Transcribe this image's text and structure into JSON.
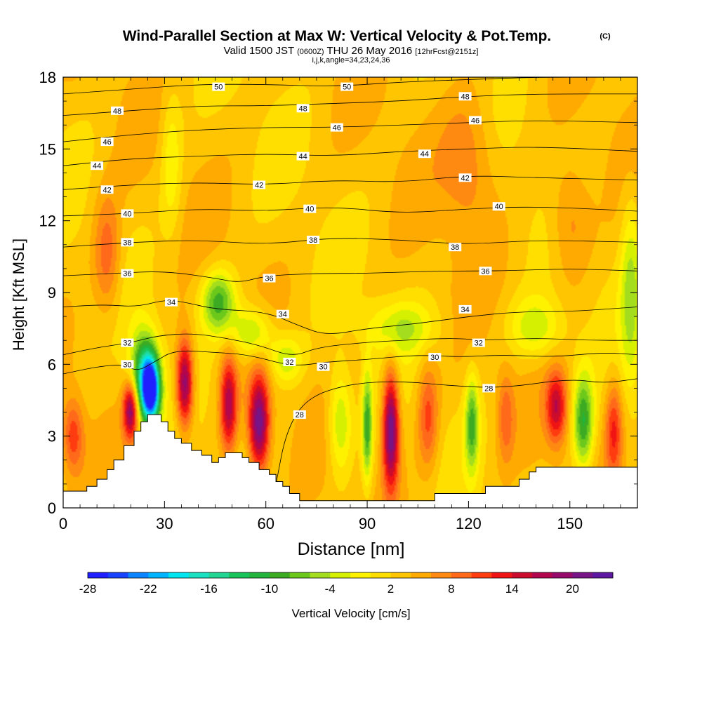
{
  "title": "Wind-Parallel Section at Max W: Vertical Velocity & Pot.Temp.",
  "copyright": "(C)",
  "subtitle": {
    "valid_prefix": "Valid 1500 JST",
    "utc": "(0600Z)",
    "date": "THU 26 May 2016",
    "forecast": "[12hrFcst@2151z]"
  },
  "indices": "i,j,k,angle=34,23,24,36",
  "chart_data": {
    "type": "heatmap",
    "title": "Wind-Parallel Section at Max W: Vertical Velocity & Pot.Temp.",
    "xlabel": "Distance [nm]",
    "ylabel": "Height [Kft MSL]",
    "xlim": [
      0,
      170
    ],
    "ylim": [
      0,
      18
    ],
    "xticks": [
      0,
      30,
      60,
      90,
      120,
      150
    ],
    "yticks": [
      0,
      3,
      6,
      9,
      12,
      15,
      18
    ],
    "grid": false,
    "fill_field": "Vertical Velocity",
    "fill_units": "cm/s",
    "contour_field": "Potential Temperature",
    "colorbar": {
      "label": "Vertical Velocity [cm/s]",
      "tick_labels": [
        "-28",
        "-22",
        "-16",
        "-10",
        "-4",
        "2",
        "8",
        "14",
        "20"
      ],
      "colors": [
        "#1f1fff",
        "#1844ff",
        "#0a84ff",
        "#00b4ff",
        "#00e6ee",
        "#18e0c0",
        "#22d592",
        "#18c45a",
        "#22b43c",
        "#3cab23",
        "#6cc81a",
        "#a3dd1e",
        "#d5f000",
        "#fff200",
        "#ffdf00",
        "#ffc500",
        "#ffaa00",
        "#ff8a12",
        "#ff6a1a",
        "#ff3c10",
        "#f01414",
        "#cc0c2c",
        "#b2064e",
        "#950a6a",
        "#771486",
        "#5c18a0"
      ]
    },
    "terrain": [
      [
        0,
        0.7
      ],
      [
        7,
        0.7
      ],
      [
        7,
        0.9
      ],
      [
        10,
        0.9
      ],
      [
        10,
        1.2
      ],
      [
        13,
        1.2
      ],
      [
        13,
        1.6
      ],
      [
        15,
        1.6
      ],
      [
        15,
        2.0
      ],
      [
        18,
        2.0
      ],
      [
        18,
        2.6
      ],
      [
        21,
        2.6
      ],
      [
        21,
        3.2
      ],
      [
        23,
        3.2
      ],
      [
        23,
        3.6
      ],
      [
        25,
        3.6
      ],
      [
        25,
        3.9
      ],
      [
        29,
        3.9
      ],
      [
        29,
        3.6
      ],
      [
        31,
        3.6
      ],
      [
        31,
        3.2
      ],
      [
        33,
        3.2
      ],
      [
        33,
        2.9
      ],
      [
        35,
        2.9
      ],
      [
        35,
        2.7
      ],
      [
        38,
        2.7
      ],
      [
        38,
        2.4
      ],
      [
        41,
        2.4
      ],
      [
        41,
        2.2
      ],
      [
        44,
        2.2
      ],
      [
        44,
        1.9
      ],
      [
        46,
        1.9
      ],
      [
        46,
        2.1
      ],
      [
        48,
        2.1
      ],
      [
        48,
        2.3
      ],
      [
        53,
        2.3
      ],
      [
        53,
        2.1
      ],
      [
        55,
        2.1
      ],
      [
        55,
        1.9
      ],
      [
        58,
        1.9
      ],
      [
        58,
        1.6
      ],
      [
        61,
        1.6
      ],
      [
        61,
        1.4
      ],
      [
        63,
        1.4
      ],
      [
        63,
        1.1
      ],
      [
        65,
        1.1
      ],
      [
        65,
        0.9
      ],
      [
        67,
        0.9
      ],
      [
        67,
        0.6
      ],
      [
        70,
        0.6
      ],
      [
        70,
        0.3
      ],
      [
        110,
        0.3
      ],
      [
        110,
        0.6
      ],
      [
        125,
        0.6
      ],
      [
        125,
        0.9
      ],
      [
        135,
        0.9
      ],
      [
        135,
        1.2
      ],
      [
        138,
        1.2
      ],
      [
        138,
        1.5
      ],
      [
        140,
        1.5
      ],
      [
        140,
        1.7
      ],
      [
        170,
        1.7
      ],
      [
        170,
        0
      ],
      [
        0,
        0
      ]
    ],
    "vv_features": [
      {
        "x": 26,
        "y": 4.9,
        "w": -27,
        "rx": 2.6,
        "ry": 1.3
      },
      {
        "x": 24,
        "y": 5.5,
        "w": -18,
        "rx": 4,
        "ry": 1.8
      },
      {
        "x": 20,
        "y": 4.1,
        "w": 18,
        "rx": 2.2,
        "ry": 1.2
      },
      {
        "x": 36,
        "y": 5.2,
        "w": 18,
        "rx": 2.5,
        "ry": 1.8
      },
      {
        "x": 49,
        "y": 4.3,
        "w": 14,
        "rx": 2.5,
        "ry": 2.0
      },
      {
        "x": 58,
        "y": 3.5,
        "w": 19,
        "rx": 3,
        "ry": 2.0
      },
      {
        "x": 97,
        "y": 3.3,
        "w": 20,
        "rx": 2.4,
        "ry": 2.4
      },
      {
        "x": 90,
        "y": 3.4,
        "w": -12,
        "rx": 1.5,
        "ry": 2.3
      },
      {
        "x": 82,
        "y": 3.6,
        "w": -8,
        "rx": 3.5,
        "ry": 2.2
      },
      {
        "x": 108,
        "y": 3.8,
        "w": 8,
        "rx": 3,
        "ry": 2.2
      },
      {
        "x": 121,
        "y": 3.5,
        "w": -11,
        "rx": 2,
        "ry": 2.0
      },
      {
        "x": 131,
        "y": 3.8,
        "w": 6,
        "rx": 2.5,
        "ry": 1.9
      },
      {
        "x": 154,
        "y": 3.6,
        "w": -13,
        "rx": 3,
        "ry": 2.0
      },
      {
        "x": 146,
        "y": 4.2,
        "w": 12,
        "rx": 3,
        "ry": 1.5
      },
      {
        "x": 163,
        "y": 3.3,
        "w": 9,
        "rx": 2.5,
        "ry": 2.0
      },
      {
        "x": 46,
        "y": 8.6,
        "w": -12,
        "rx": 5,
        "ry": 1.3
      },
      {
        "x": 56,
        "y": 7.3,
        "w": -9,
        "rx": 6,
        "ry": 1.1
      },
      {
        "x": 66,
        "y": 6.2,
        "w": -7,
        "rx": 5,
        "ry": 1.0
      },
      {
        "x": 100,
        "y": 7.5,
        "w": -6,
        "rx": 10,
        "ry": 1.1
      },
      {
        "x": 140,
        "y": 7.5,
        "w": -7,
        "rx": 8,
        "ry": 1.3
      },
      {
        "x": 168,
        "y": 9,
        "w": -7,
        "rx": 3,
        "ry": 4.0
      },
      {
        "x": 13,
        "y": 10.5,
        "w": 7,
        "rx": 4,
        "ry": 2.5
      },
      {
        "x": 3,
        "y": 3.0,
        "w": 8,
        "rx": 3,
        "ry": 1.5
      },
      {
        "x": 120,
        "y": 14.5,
        "w": 5,
        "rx": 8,
        "ry": 3.0
      },
      {
        "x": 150,
        "y": 12.0,
        "w": 5,
        "rx": 6,
        "ry": 2.5
      },
      {
        "x": 32,
        "y": 14.5,
        "w": -5,
        "rx": 3,
        "ry": 3.0
      }
    ],
    "contours": [
      {
        "value": 28,
        "points": [
          [
            63,
            1.0
          ],
          [
            66,
            3.2
          ],
          [
            72,
            4.6
          ],
          [
            85,
            5.2
          ],
          [
            100,
            5.3
          ],
          [
            115,
            5.1
          ],
          [
            130,
            5.0
          ],
          [
            150,
            5.4
          ],
          [
            160,
            5.2
          ],
          [
            170,
            5.4
          ]
        ]
      },
      {
        "value": 30,
        "points": [
          [
            0,
            5.6
          ],
          [
            10,
            5.9
          ],
          [
            18,
            6.0
          ],
          [
            22,
            5.7
          ],
          [
            27,
            6.1
          ],
          [
            33,
            6.6
          ],
          [
            45,
            6.5
          ],
          [
            55,
            6.4
          ],
          [
            68,
            5.9
          ],
          [
            78,
            6.1
          ],
          [
            90,
            6.2
          ],
          [
            105,
            6.4
          ],
          [
            118,
            6.3
          ],
          [
            130,
            6.4
          ],
          [
            145,
            6.3
          ],
          [
            160,
            6.5
          ],
          [
            170,
            6.4
          ]
        ]
      },
      {
        "value": 32,
        "points": [
          [
            0,
            6.4
          ],
          [
            10,
            6.7
          ],
          [
            20,
            6.9
          ],
          [
            28,
            7.2
          ],
          [
            38,
            7.3
          ],
          [
            48,
            7.1
          ],
          [
            58,
            6.8
          ],
          [
            68,
            6.3
          ],
          [
            75,
            6.7
          ],
          [
            88,
            6.9
          ],
          [
            100,
            7.0
          ],
          [
            115,
            7.1
          ],
          [
            125,
            7.0
          ],
          [
            140,
            7.1
          ],
          [
            155,
            7.0
          ],
          [
            170,
            7.0
          ]
        ]
      },
      {
        "value": 34,
        "points": [
          [
            0,
            8.4
          ],
          [
            12,
            8.5
          ],
          [
            22,
            8.4
          ],
          [
            30,
            8.7
          ],
          [
            36,
            8.6
          ],
          [
            45,
            8.3
          ],
          [
            60,
            8.2
          ],
          [
            70,
            7.6
          ],
          [
            78,
            7.2
          ],
          [
            90,
            7.5
          ],
          [
            105,
            7.7
          ],
          [
            120,
            8.0
          ],
          [
            135,
            8.2
          ],
          [
            150,
            8.2
          ],
          [
            170,
            8.4
          ]
        ]
      },
      {
        "value": 36,
        "points": [
          [
            0,
            9.7
          ],
          [
            15,
            9.8
          ],
          [
            30,
            9.9
          ],
          [
            45,
            9.6
          ],
          [
            52,
            9.4
          ],
          [
            60,
            9.7
          ],
          [
            75,
            9.8
          ],
          [
            90,
            9.8
          ],
          [
            110,
            9.9
          ],
          [
            130,
            9.9
          ],
          [
            150,
            10.0
          ],
          [
            170,
            9.9
          ]
        ]
      },
      {
        "value": 38,
        "points": [
          [
            0,
            10.9
          ],
          [
            20,
            11.1
          ],
          [
            40,
            11.2
          ],
          [
            60,
            11.0
          ],
          [
            80,
            11.3
          ],
          [
            100,
            11.2
          ],
          [
            120,
            11.0
          ],
          [
            140,
            11.2
          ],
          [
            170,
            11.1
          ]
        ]
      },
      {
        "value": 40,
        "points": [
          [
            0,
            12.2
          ],
          [
            20,
            12.3
          ],
          [
            40,
            12.5
          ],
          [
            60,
            12.4
          ],
          [
            80,
            12.6
          ],
          [
            100,
            12.3
          ],
          [
            120,
            12.5
          ],
          [
            140,
            12.6
          ],
          [
            170,
            12.4
          ]
        ]
      },
      {
        "value": 42,
        "points": [
          [
            0,
            13.3
          ],
          [
            20,
            13.5
          ],
          [
            40,
            13.6
          ],
          [
            60,
            13.5
          ],
          [
            80,
            13.7
          ],
          [
            100,
            13.6
          ],
          [
            120,
            13.9
          ],
          [
            140,
            13.8
          ],
          [
            170,
            13.7
          ]
        ]
      },
      {
        "value": 44,
        "points": [
          [
            0,
            14.3
          ],
          [
            20,
            14.6
          ],
          [
            40,
            14.7
          ],
          [
            60,
            14.8
          ],
          [
            80,
            14.7
          ],
          [
            100,
            14.9
          ],
          [
            120,
            15.0
          ],
          [
            140,
            15.1
          ],
          [
            170,
            14.9
          ]
        ]
      },
      {
        "value": 46,
        "points": [
          [
            0,
            15.3
          ],
          [
            20,
            15.6
          ],
          [
            40,
            15.8
          ],
          [
            60,
            15.9
          ],
          [
            80,
            15.9
          ],
          [
            100,
            16.0
          ],
          [
            120,
            16.1
          ],
          [
            140,
            16.2
          ],
          [
            170,
            16.1
          ]
        ]
      },
      {
        "value": 48,
        "points": [
          [
            0,
            16.4
          ],
          [
            20,
            16.6
          ],
          [
            40,
            16.8
          ],
          [
            60,
            16.8
          ],
          [
            80,
            16.9
          ],
          [
            100,
            17.0
          ],
          [
            120,
            17.2
          ],
          [
            140,
            17.3
          ],
          [
            170,
            17.3
          ]
        ]
      },
      {
        "value": 50,
        "points": [
          [
            0,
            17.3
          ],
          [
            20,
            17.5
          ],
          [
            40,
            17.7
          ],
          [
            60,
            17.7
          ],
          [
            80,
            17.6
          ],
          [
            100,
            17.8
          ],
          [
            120,
            17.9
          ],
          [
            140,
            18.0
          ],
          [
            170,
            18.0
          ]
        ]
      }
    ],
    "contour_labels": [
      {
        "text": "50",
        "x": 46,
        "y": 17.6
      },
      {
        "text": "50",
        "x": 84,
        "y": 17.6
      },
      {
        "text": "48",
        "x": 16,
        "y": 16.6
      },
      {
        "text": "48",
        "x": 71,
        "y": 16.7
      },
      {
        "text": "48",
        "x": 119,
        "y": 17.2
      },
      {
        "text": "46",
        "x": 81,
        "y": 15.9
      },
      {
        "text": "46",
        "x": 122,
        "y": 16.2
      },
      {
        "text": "46",
        "x": 13,
        "y": 15.3
      },
      {
        "text": "44",
        "x": 71,
        "y": 14.7
      },
      {
        "text": "44",
        "x": 107,
        "y": 14.8
      },
      {
        "text": "44",
        "x": 10,
        "y": 14.3
      },
      {
        "text": "42",
        "x": 58,
        "y": 13.5
      },
      {
        "text": "42",
        "x": 119,
        "y": 13.8
      },
      {
        "text": "42",
        "x": 13,
        "y": 13.3
      },
      {
        "text": "40",
        "x": 19,
        "y": 12.3
      },
      {
        "text": "40",
        "x": 73,
        "y": 12.5
      },
      {
        "text": "40",
        "x": 129,
        "y": 12.6
      },
      {
        "text": "38",
        "x": 19,
        "y": 11.1
      },
      {
        "text": "38",
        "x": 74,
        "y": 11.2
      },
      {
        "text": "38",
        "x": 116,
        "y": 10.9
      },
      {
        "text": "36",
        "x": 19,
        "y": 9.8
      },
      {
        "text": "36",
        "x": 61,
        "y": 9.6
      },
      {
        "text": "36",
        "x": 125,
        "y": 9.9
      },
      {
        "text": "34",
        "x": 32,
        "y": 8.6
      },
      {
        "text": "34",
        "x": 65,
        "y": 8.1
      },
      {
        "text": "34",
        "x": 119,
        "y": 8.3
      },
      {
        "text": "32",
        "x": 19,
        "y": 6.9
      },
      {
        "text": "32",
        "x": 67,
        "y": 6.1
      },
      {
        "text": "32",
        "x": 123,
        "y": 6.9
      },
      {
        "text": "30",
        "x": 19,
        "y": 6.0
      },
      {
        "text": "30",
        "x": 77,
        "y": 5.9
      },
      {
        "text": "30",
        "x": 110,
        "y": 6.3
      },
      {
        "text": "28",
        "x": 70,
        "y": 3.9
      },
      {
        "text": "28",
        "x": 126,
        "y": 5.0
      }
    ]
  }
}
